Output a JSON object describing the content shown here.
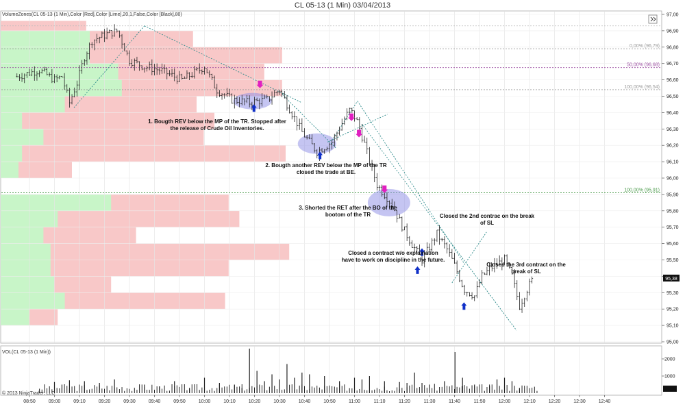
{
  "window": {
    "title": "CL 05-13 (1 Min)  03/04/2013"
  },
  "indicator_label": "VolumeZones(CL 05-13 (1 Min),Color [Red],Color [Lime],20,1,False,Color [Black],80)",
  "volume_label": "VOL(CL 05-13 (1 Min))",
  "copyright": "© 2013 NinjaTrader, LLC",
  "colors": {
    "buy_zone": "#c8f5c8",
    "sell_zone": "#f8c8c8",
    "ellipse": "#8c8ce6",
    "trendline": "#2e8b8b",
    "arrow_down": "#e020c0",
    "arrow_up": "#1030c8",
    "fib_upper": "#9b4ca0",
    "fib_lower": "#4a9a4a"
  },
  "chart_data": {
    "type": "ohlc",
    "price_axis": {
      "min": 95.0,
      "max": 97.0,
      "ticks": [
        "97,00",
        "96,90",
        "96,80",
        "96,70",
        "96,60",
        "96,50",
        "96,40",
        "96,30",
        "96,20",
        "96,10",
        "96,00",
        "95,90",
        "95,80",
        "95,70",
        "95,60",
        "95,50",
        "95,40",
        "95,30",
        "95,20",
        "95,10",
        "95,00"
      ]
    },
    "last_price": "95,38",
    "time_ticks": [
      "08:50",
      "09:00",
      "09:10",
      "09:20",
      "09:30",
      "09:40",
      "09:50",
      "10:00",
      "10:10",
      "10:20",
      "10:30",
      "10:40",
      "10:50",
      "11:00",
      "11:10",
      "11:20",
      "11:30",
      "11:40",
      "11:50",
      "12:00",
      "12:10",
      "12:20",
      "12:30",
      "12:40"
    ],
    "price_path": [
      [
        8.75,
        96.62
      ],
      [
        8.9,
        96.66
      ],
      [
        9.0,
        96.6
      ],
      [
        9.05,
        96.62
      ],
      [
        9.1,
        96.46
      ],
      [
        9.15,
        96.58
      ],
      [
        9.2,
        96.74
      ],
      [
        9.25,
        96.84
      ],
      [
        9.35,
        96.88
      ],
      [
        9.42,
        96.9
      ],
      [
        9.5,
        96.72
      ],
      [
        9.6,
        96.68
      ],
      [
        9.7,
        96.66
      ],
      [
        9.85,
        96.6
      ],
      [
        10.0,
        96.68
      ],
      [
        10.08,
        96.54
      ],
      [
        10.18,
        96.48
      ],
      [
        10.3,
        96.46
      ],
      [
        10.42,
        96.48
      ],
      [
        10.5,
        96.54
      ],
      [
        10.58,
        96.4
      ],
      [
        10.65,
        96.28
      ],
      [
        10.75,
        96.16
      ],
      [
        10.85,
        96.22
      ],
      [
        10.92,
        96.34
      ],
      [
        10.97,
        96.42
      ],
      [
        11.02,
        96.34
      ],
      [
        11.07,
        96.2
      ],
      [
        11.1,
        96.1
      ],
      [
        11.15,
        95.96
      ],
      [
        11.25,
        95.84
      ],
      [
        11.32,
        95.7
      ],
      [
        11.38,
        95.6
      ],
      [
        11.45,
        95.5
      ],
      [
        11.5,
        95.58
      ],
      [
        11.55,
        95.66
      ],
      [
        11.62,
        95.56
      ],
      [
        11.67,
        95.46
      ],
      [
        11.73,
        95.32
      ],
      [
        11.8,
        95.28
      ],
      [
        11.85,
        95.4
      ],
      [
        11.92,
        95.46
      ],
      [
        12.0,
        95.5
      ],
      [
        12.05,
        95.4
      ],
      [
        12.1,
        95.22
      ],
      [
        12.15,
        95.32
      ],
      [
        12.2,
        95.4
      ]
    ],
    "volume_axis": {
      "min": 0,
      "max": 2600,
      "ticks": [
        "2000",
        "1000",
        "184"
      ]
    },
    "volume_bars": [
      [
        9.0,
        650
      ],
      [
        9.05,
        500
      ],
      [
        9.1,
        750
      ],
      [
        9.2,
        700
      ],
      [
        9.3,
        600
      ],
      [
        9.4,
        800
      ],
      [
        9.6,
        500
      ],
      [
        9.7,
        400
      ],
      [
        9.8,
        700
      ],
      [
        9.9,
        300
      ],
      [
        10.0,
        900
      ],
      [
        10.1,
        600
      ],
      [
        10.2,
        500
      ],
      [
        10.25,
        300
      ],
      [
        10.3,
        2600
      ],
      [
        10.35,
        1300
      ],
      [
        10.4,
        700
      ],
      [
        10.45,
        1100
      ],
      [
        10.5,
        800
      ],
      [
        10.55,
        1700
      ],
      [
        10.6,
        900
      ],
      [
        10.65,
        1200
      ],
      [
        10.7,
        1100
      ],
      [
        10.8,
        1000
      ],
      [
        10.9,
        700
      ],
      [
        11.0,
        900
      ],
      [
        11.05,
        800
      ],
      [
        11.1,
        1000
      ],
      [
        11.2,
        700
      ],
      [
        11.3,
        650
      ],
      [
        11.35,
        600
      ],
      [
        11.4,
        1200
      ],
      [
        11.45,
        600
      ],
      [
        11.5,
        500
      ],
      [
        11.6,
        700
      ],
      [
        11.67,
        2400
      ],
      [
        11.72,
        900
      ],
      [
        11.8,
        500
      ],
      [
        11.9,
        400
      ],
      [
        11.95,
        800
      ],
      [
        12.0,
        900
      ],
      [
        12.05,
        700
      ],
      [
        12.1,
        300
      ]
    ],
    "buy_zones": [
      [
        96.8,
        96.9,
        0.25
      ],
      [
        96.7,
        96.8,
        0.25
      ],
      [
        96.6,
        96.7,
        0.33
      ],
      [
        96.5,
        96.6,
        0.34
      ],
      [
        96.4,
        96.5,
        0.18
      ],
      [
        96.3,
        96.4,
        0.06
      ],
      [
        96.2,
        96.3,
        0.12
      ],
      [
        96.1,
        96.2,
        0.06
      ],
      [
        96.0,
        96.1,
        0.05
      ],
      [
        95.8,
        95.9,
        0.31
      ],
      [
        95.7,
        95.8,
        0.16
      ],
      [
        95.6,
        95.7,
        0.12
      ],
      [
        95.5,
        95.6,
        0.14
      ],
      [
        95.4,
        95.5,
        0.14
      ],
      [
        95.3,
        95.4,
        0.15
      ],
      [
        95.2,
        95.3,
        0.18
      ],
      [
        95.1,
        95.2,
        0.08
      ]
    ],
    "sell_zones": [
      [
        96.9,
        96.96,
        0.24
      ],
      [
        96.8,
        96.9,
        0.54
      ],
      [
        96.7,
        96.8,
        0.79
      ],
      [
        96.6,
        96.7,
        0.74
      ],
      [
        96.5,
        96.6,
        0.79
      ],
      [
        96.4,
        96.5,
        0.55
      ],
      [
        96.3,
        96.4,
        0.6
      ],
      [
        96.2,
        96.3,
        0.57
      ],
      [
        96.1,
        96.2,
        0.8
      ],
      [
        96.0,
        96.1,
        0.2
      ],
      [
        95.8,
        95.9,
        0.64
      ],
      [
        95.7,
        95.8,
        0.67
      ],
      [
        95.6,
        95.7,
        0.38
      ],
      [
        95.5,
        95.6,
        0.81
      ],
      [
        95.4,
        95.5,
        0.64
      ],
      [
        95.3,
        95.4,
        0.31
      ],
      [
        95.2,
        95.3,
        0.63
      ],
      [
        95.1,
        95.2,
        0.16
      ]
    ],
    "fib_levels": [
      {
        "label": "0,00% (96,79)",
        "price": 96.79,
        "color": "#999999"
      },
      {
        "label": "50,00% (96,68)",
        "price": 96.675,
        "color": "#9b4ca0"
      },
      {
        "label": "100,00% (96,54)",
        "price": 96.54,
        "color": "#999999"
      },
      {
        "label": "100,00% (95,91)",
        "price": 95.91,
        "color": "#4a9a4a"
      }
    ],
    "annotations": [
      {
        "lines": [
          "1. Bougth REV below the MP of the TR. Stopped after",
          "the release of Crude Oil Inventories."
        ]
      },
      {
        "lines": [
          "2. Bougth another REV below the MP of the TR",
          "closed the trade at BE."
        ]
      },
      {
        "lines": [
          "3. Shorted the RET after the BO of the",
          "bootom of the TR"
        ]
      },
      {
        "lines": [
          "Closed the 2nd contrac on the break",
          "of SL"
        ]
      },
      {
        "lines": [
          "Closed a contract w/o explaination",
          "have to work on discipline in the future."
        ]
      },
      {
        "lines": [
          "Closed the 3rd contract on the",
          "break of SL"
        ]
      }
    ]
  }
}
